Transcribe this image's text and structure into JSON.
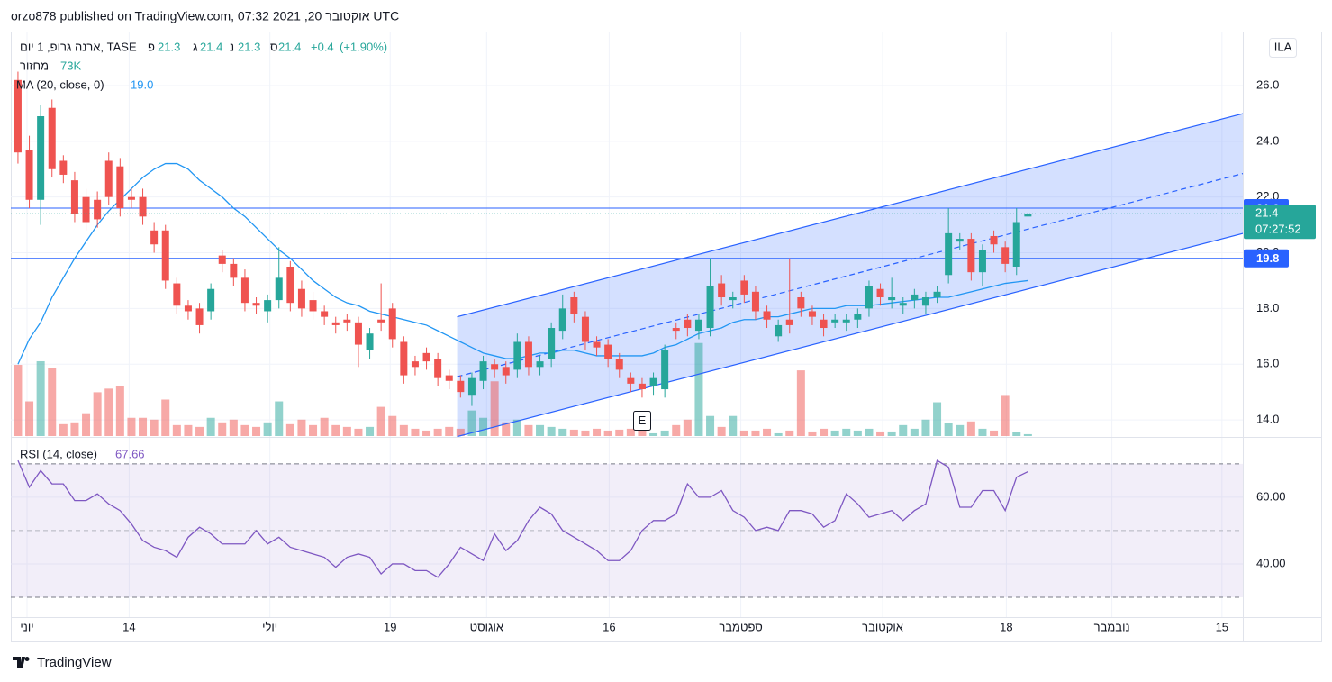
{
  "header": {
    "published": "orzo878 published on TradingView.com, 07:32 2021 ,20 אוקטובר UTC"
  },
  "chart_data": {
    "type": "candlestick",
    "title": "ארנה גרופ, 1 יום, TASE",
    "currency": "ILA",
    "ohlc_letters": [
      "פ",
      "ג",
      "נ",
      "ס"
    ],
    "change": "+0.4",
    "change_percent": "(+1.90%)",
    "up_color": "#26a69a",
    "down_color": "#ef5350",
    "open": [
      26.2,
      23.7,
      21.9,
      25.2,
      23.3,
      22.6,
      22.0,
      21.9,
      23.3,
      23.1,
      22.0,
      22.0,
      20.8,
      20.8,
      18.9,
      18.1,
      18.0,
      17.9,
      19.9,
      19.6,
      19.1,
      18.2,
      17.9,
      18.3,
      19.5,
      18.7,
      18.3,
      17.9,
      17.5,
      17.6,
      17.5,
      16.5,
      17.6,
      18.0,
      16.8,
      16.1,
      16.4,
      16.2,
      15.6,
      15.4,
      14.9,
      15.4,
      16.0,
      15.9,
      15.8,
      16.8,
      15.9,
      16.2,
      17.2,
      18.4,
      17.7,
      16.8,
      16.7,
      16.2,
      15.5,
      15.3,
      15.2,
      15.1,
      17.3,
      17.6,
      17.2,
      17.3,
      18.9,
      18.3,
      19.0,
      18.6,
      17.9,
      17.0,
      17.6,
      18.4,
      17.9,
      17.6,
      17.5,
      17.5,
      17.6,
      18.0,
      18.7,
      18.3,
      18.1,
      18.3,
      18.1,
      18.4,
      19.2,
      20.4,
      20.5,
      19.3,
      20.6,
      20.2,
      19.5,
      21.3
    ],
    "high": [
      26.5,
      24.2,
      25.3,
      25.5,
      23.5,
      22.9,
      22.3,
      22.2,
      23.6,
      23.4,
      22.3,
      22.3,
      21.1,
      21.0,
      19.1,
      18.3,
      18.2,
      18.9,
      20.1,
      19.8,
      19.4,
      18.4,
      18.5,
      20.2,
      19.7,
      19.0,
      18.6,
      18.1,
      17.7,
      17.8,
      17.7,
      17.3,
      18.9,
      18.2,
      17.0,
      16.3,
      16.6,
      16.4,
      15.8,
      15.6,
      15.7,
      16.3,
      16.2,
      16.1,
      17.1,
      17.0,
      16.3,
      17.5,
      18.5,
      18.6,
      17.9,
      17.0,
      16.9,
      16.4,
      15.7,
      15.5,
      15.7,
      16.7,
      17.5,
      17.8,
      17.8,
      19.8,
      19.2,
      18.6,
      19.2,
      18.8,
      18.1,
      17.6,
      19.8,
      18.6,
      18.1,
      17.8,
      17.8,
      17.8,
      18.0,
      19.0,
      18.9,
      19.1,
      18.4,
      18.7,
      18.6,
      18.8,
      21.6,
      20.7,
      20.7,
      20.3,
      20.8,
      20.4,
      21.6,
      21.4
    ],
    "low": [
      23.2,
      21.6,
      21.0,
      22.7,
      22.5,
      21.1,
      20.8,
      20.9,
      21.7,
      21.3,
      21.6,
      21.0,
      20.0,
      18.7,
      17.8,
      17.6,
      17.1,
      17.6,
      19.3,
      18.8,
      17.9,
      17.8,
      17.5,
      18.0,
      17.9,
      17.7,
      17.6,
      17.4,
      17.1,
      17.2,
      15.9,
      16.2,
      17.2,
      16.6,
      15.3,
      15.6,
      15.8,
      15.2,
      15.1,
      14.8,
      14.5,
      15.1,
      15.5,
      15.3,
      15.5,
      15.6,
      15.6,
      15.9,
      16.9,
      17.5,
      16.5,
      16.3,
      15.9,
      15.5,
      15.0,
      14.8,
      14.9,
      14.8,
      16.9,
      17.0,
      16.9,
      17.0,
      18.1,
      18.0,
      18.2,
      17.6,
      17.3,
      16.8,
      17.1,
      17.7,
      17.4,
      17.0,
      17.3,
      17.2,
      17.3,
      17.7,
      18.1,
      18.0,
      17.8,
      18.0,
      17.8,
      18.2,
      18.9,
      20.1,
      19.0,
      18.8,
      20.0,
      19.3,
      19.2,
      21.3
    ],
    "close": [
      23.6,
      21.9,
      24.9,
      23.0,
      22.8,
      21.4,
      21.1,
      21.2,
      22.0,
      21.6,
      21.9,
      21.3,
      20.3,
      19.0,
      18.1,
      17.9,
      17.4,
      18.7,
      19.6,
      19.1,
      18.2,
      18.1,
      18.3,
      19.1,
      18.2,
      18.0,
      17.9,
      17.7,
      17.4,
      17.5,
      16.7,
      17.1,
      17.5,
      16.9,
      15.6,
      15.9,
      16.1,
      15.5,
      15.4,
      15.0,
      15.5,
      16.1,
      15.8,
      15.6,
      16.8,
      15.9,
      16.1,
      17.3,
      18.0,
      17.8,
      16.8,
      16.6,
      16.2,
      15.8,
      15.3,
      15.1,
      15.5,
      16.5,
      17.2,
      17.3,
      17.6,
      18.8,
      18.4,
      18.4,
      18.5,
      17.9,
      17.6,
      17.4,
      17.4,
      18.0,
      17.7,
      17.3,
      17.6,
      17.6,
      17.8,
      18.8,
      18.4,
      18.4,
      18.2,
      18.5,
      18.4,
      18.6,
      20.7,
      20.5,
      19.3,
      20.1,
      20.3,
      19.6,
      21.1,
      21.4
    ],
    "xlim": [
      -0.63,
      107.94
    ],
    "xticks": [
      {
        "value": 0.8,
        "label": "יוני"
      },
      {
        "value": 9.8,
        "label": "14"
      },
      {
        "value": 22.2,
        "label": "יולי"
      },
      {
        "value": 32.8,
        "label": "19"
      },
      {
        "value": 41.3,
        "label": "אוגוסט"
      },
      {
        "value": 52.1,
        "label": "16"
      },
      {
        "value": 63.7,
        "label": "ספטמבר"
      },
      {
        "value": 76.2,
        "label": "אוקטובר"
      },
      {
        "value": 87.1,
        "label": "18"
      },
      {
        "value": 96.4,
        "label": "נובמבר"
      },
      {
        "value": 106.1,
        "label": "15"
      }
    ],
    "ylim": [
      13.42,
      27.94
    ],
    "yticks": [
      {
        "value": 14,
        "label": "14.0"
      },
      {
        "value": 16,
        "label": "16.0"
      },
      {
        "value": 18,
        "label": "18.0"
      },
      {
        "value": 20,
        "label": "20.0"
      },
      {
        "value": 22,
        "label": "22.0"
      },
      {
        "value": 24,
        "label": "24.0"
      },
      {
        "value": 26,
        "label": "26.0"
      }
    ],
    "grid": true,
    "volume": {
      "name": "מחזור",
      "label": "73K",
      "values": [
        2808000,
        1368000,
        2952000,
        2700000,
        468000,
        540000,
        900000,
        1728000,
        1872000,
        1980000,
        720000,
        720000,
        648000,
        1440000,
        432000,
        432000,
        360000,
        720000,
        540000,
        648000,
        432000,
        360000,
        540000,
        1368000,
        468000,
        648000,
        432000,
        720000,
        432000,
        360000,
        288000,
        360000,
        1152000,
        792000,
        432000,
        288000,
        216000,
        288000,
        360000,
        288000,
        1008000,
        720000,
        2160000,
        540000,
        648000,
        432000,
        432000,
        360000,
        288000,
        252000,
        216000,
        288000,
        216000,
        252000,
        288000,
        216000,
        108000,
        216000,
        432000,
        648000,
        3672000,
        792000,
        360000,
        792000,
        216000,
        216000,
        288000,
        108000,
        216000,
        2592000,
        180000,
        288000,
        216000,
        288000,
        216000,
        288000,
        180000,
        180000,
        432000,
        288000,
        648000,
        1332000,
        504000,
        432000,
        576000,
        288000,
        216000,
        1620000,
        144000,
        73000
      ]
    },
    "ma": {
      "name": "MA (20, close, 0)",
      "label": "19.0",
      "color": "#2196f3",
      "values": [
        16.0,
        16.9,
        17.5,
        18.4,
        19.1,
        19.8,
        20.4,
        21.0,
        21.5,
        21.9,
        22.3,
        22.7,
        23.0,
        23.2,
        23.2,
        23.0,
        22.6,
        22.3,
        22.0,
        21.6,
        21.3,
        20.9,
        20.5,
        20.1,
        19.8,
        19.4,
        19.0,
        18.7,
        18.4,
        18.2,
        18.1,
        17.9,
        17.8,
        17.7,
        17.6,
        17.5,
        17.4,
        17.2,
        17.0,
        16.8,
        16.6,
        16.4,
        16.3,
        16.2,
        16.2,
        16.3,
        16.4,
        16.4,
        16.5,
        16.5,
        16.4,
        16.3,
        16.3,
        16.3,
        16.3,
        16.3,
        16.4,
        16.6,
        16.7,
        16.9,
        17.1,
        17.2,
        17.3,
        17.5,
        17.6,
        17.6,
        17.7,
        17.7,
        17.8,
        17.9,
        18.0,
        18.0,
        18.0,
        18.1,
        18.1,
        18.1,
        18.15,
        18.2,
        18.25,
        18.3,
        18.35,
        18.4,
        18.4,
        18.5,
        18.6,
        18.7,
        18.8,
        18.9,
        18.95,
        19.0
      ]
    },
    "hlines": [
      21.6,
      19.8
    ],
    "hline_color": "#2962ff",
    "channel": {
      "x": [
        38.7,
        108
      ],
      "upper": [
        17.7,
        25.0
      ],
      "lower": [
        13.4,
        20.7
      ],
      "color": "#2962ff"
    },
    "countdown": "07:27:52",
    "earnings_label": "E",
    "rsi": {
      "name": "RSI (14, close)",
      "color": "#7e57c2",
      "values": [
        71,
        63,
        68,
        64,
        64,
        59,
        59,
        61,
        58,
        56,
        52,
        47,
        45,
        44,
        42,
        48,
        51,
        49,
        46,
        46,
        46,
        50,
        46,
        48,
        45,
        44,
        43,
        42,
        39,
        42,
        43,
        42,
        37,
        40,
        40,
        38,
        38,
        36,
        40,
        45,
        43,
        41,
        49,
        44,
        47,
        53,
        57,
        55,
        50,
        48,
        46,
        44,
        41,
        41,
        44,
        50,
        53,
        53,
        55,
        64,
        60,
        60,
        62,
        56,
        54,
        50,
        51,
        50,
        56,
        56,
        55,
        51,
        53,
        61,
        58,
        54,
        55,
        56,
        53,
        56,
        58,
        71,
        69,
        57,
        57,
        62,
        62,
        56,
        66,
        67.66
      ],
      "ylim": [
        24.05,
        77.8
      ],
      "yticks": [
        {
          "value": 40,
          "label": "40.00"
        },
        {
          "value": 60,
          "label": "60.00"
        }
      ],
      "band": [
        30,
        70
      ],
      "mid": 50
    }
  },
  "footer": {
    "brand": "TradingView"
  }
}
